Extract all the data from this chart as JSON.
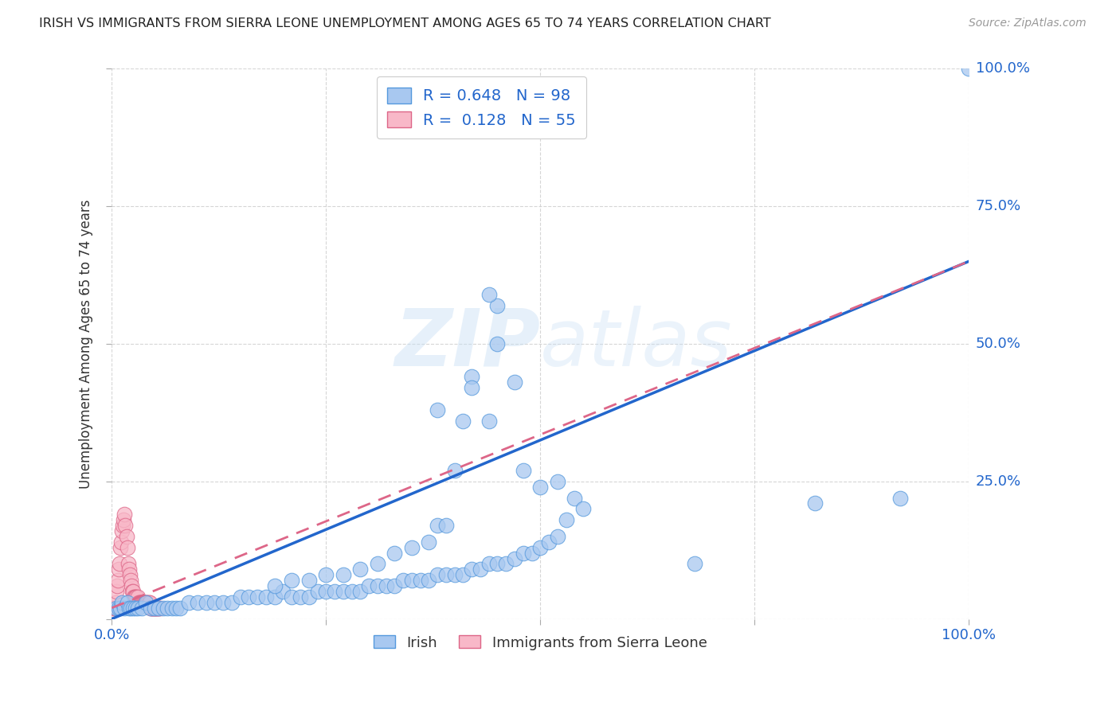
{
  "title": "IRISH VS IMMIGRANTS FROM SIERRA LEONE UNEMPLOYMENT AMONG AGES 65 TO 74 YEARS CORRELATION CHART",
  "source": "Source: ZipAtlas.com",
  "ylabel": "Unemployment Among Ages 65 to 74 years",
  "xlim": [
    0.0,
    1.0
  ],
  "ylim": [
    0.0,
    1.0
  ],
  "xticks": [
    0.0,
    0.25,
    0.5,
    0.75,
    1.0
  ],
  "yticks": [
    0.0,
    0.25,
    0.5,
    0.75,
    1.0
  ],
  "xticklabels": [
    "0.0%",
    "",
    "",
    "",
    "100.0%"
  ],
  "yticklabels": [
    "",
    "25.0%",
    "50.0%",
    "75.0%",
    "100.0%"
  ],
  "background_color": "#ffffff",
  "grid_color": "#cccccc",
  "legend_R_blue": "0.648",
  "legend_N_blue": "98",
  "legend_R_pink": "0.128",
  "legend_N_pink": "55",
  "legend_label_blue": "Irish",
  "legend_label_pink": "Immigrants from Sierra Leone",
  "blue_color": "#a8c8f0",
  "blue_edge_color": "#5599dd",
  "blue_line_color": "#2266cc",
  "pink_color": "#f8b8c8",
  "pink_edge_color": "#dd6688",
  "pink_line_color": "#dd6688",
  "blue_scatter_x": [
    0.005,
    0.008,
    0.01,
    0.012,
    0.015,
    0.018,
    0.02,
    0.022,
    0.025,
    0.028,
    0.03,
    0.035,
    0.04,
    0.045,
    0.05,
    0.055,
    0.06,
    0.065,
    0.07,
    0.075,
    0.08,
    0.09,
    0.1,
    0.11,
    0.12,
    0.13,
    0.14,
    0.15,
    0.16,
    0.17,
    0.18,
    0.19,
    0.2,
    0.21,
    0.22,
    0.23,
    0.24,
    0.25,
    0.26,
    0.27,
    0.28,
    0.29,
    0.3,
    0.31,
    0.32,
    0.33,
    0.34,
    0.35,
    0.36,
    0.37,
    0.38,
    0.39,
    0.4,
    0.41,
    0.42,
    0.43,
    0.44,
    0.45,
    0.46,
    0.47,
    0.48,
    0.49,
    0.5,
    0.51,
    0.52,
    0.53,
    0.54,
    0.55,
    0.38,
    0.42,
    0.44,
    0.45,
    0.47,
    0.48,
    0.5,
    0.52,
    0.38,
    0.82,
    0.92,
    0.68,
    0.45,
    0.44,
    0.42,
    0.41,
    0.4,
    0.39,
    0.37,
    0.35,
    0.33,
    0.31,
    0.29,
    0.27,
    0.25,
    0.23,
    0.21,
    0.19,
    1.0
  ],
  "blue_scatter_y": [
    0.02,
    0.02,
    0.02,
    0.03,
    0.02,
    0.03,
    0.02,
    0.02,
    0.02,
    0.02,
    0.02,
    0.02,
    0.03,
    0.02,
    0.02,
    0.02,
    0.02,
    0.02,
    0.02,
    0.02,
    0.02,
    0.03,
    0.03,
    0.03,
    0.03,
    0.03,
    0.03,
    0.04,
    0.04,
    0.04,
    0.04,
    0.04,
    0.05,
    0.04,
    0.04,
    0.04,
    0.05,
    0.05,
    0.05,
    0.05,
    0.05,
    0.05,
    0.06,
    0.06,
    0.06,
    0.06,
    0.07,
    0.07,
    0.07,
    0.07,
    0.08,
    0.08,
    0.08,
    0.08,
    0.09,
    0.09,
    0.1,
    0.1,
    0.1,
    0.11,
    0.12,
    0.12,
    0.13,
    0.14,
    0.15,
    0.18,
    0.22,
    0.2,
    0.38,
    0.44,
    0.36,
    0.5,
    0.43,
    0.27,
    0.24,
    0.25,
    0.17,
    0.21,
    0.22,
    0.1,
    0.57,
    0.59,
    0.42,
    0.36,
    0.27,
    0.17,
    0.14,
    0.13,
    0.12,
    0.1,
    0.09,
    0.08,
    0.08,
    0.07,
    0.07,
    0.06,
    1.0
  ],
  "pink_scatter_x": [
    0.002,
    0.003,
    0.004,
    0.005,
    0.006,
    0.007,
    0.008,
    0.009,
    0.01,
    0.011,
    0.012,
    0.013,
    0.014,
    0.015,
    0.016,
    0.017,
    0.018,
    0.019,
    0.02,
    0.021,
    0.022,
    0.023,
    0.024,
    0.025,
    0.026,
    0.027,
    0.028,
    0.029,
    0.03,
    0.031,
    0.032,
    0.033,
    0.034,
    0.035,
    0.036,
    0.037,
    0.038,
    0.039,
    0.04,
    0.041,
    0.042,
    0.043,
    0.044,
    0.045,
    0.046,
    0.047,
    0.048,
    0.049,
    0.05,
    0.051,
    0.052,
    0.053,
    0.054,
    0.055,
    0.056
  ],
  "pink_scatter_y": [
    0.02,
    0.02,
    0.03,
    0.05,
    0.06,
    0.07,
    0.09,
    0.1,
    0.13,
    0.14,
    0.16,
    0.17,
    0.18,
    0.19,
    0.17,
    0.15,
    0.13,
    0.1,
    0.09,
    0.08,
    0.07,
    0.06,
    0.05,
    0.05,
    0.04,
    0.04,
    0.04,
    0.04,
    0.04,
    0.03,
    0.03,
    0.03,
    0.03,
    0.03,
    0.03,
    0.03,
    0.03,
    0.03,
    0.03,
    0.03,
    0.03,
    0.03,
    0.03,
    0.02,
    0.02,
    0.02,
    0.02,
    0.02,
    0.02,
    0.02,
    0.02,
    0.02,
    0.02,
    0.02,
    0.02
  ],
  "blue_trend_x": [
    0.0,
    1.0
  ],
  "blue_trend_y": [
    0.0,
    0.65
  ],
  "pink_trend_x": [
    0.0,
    1.0
  ],
  "pink_trend_y": [
    0.02,
    0.65
  ]
}
